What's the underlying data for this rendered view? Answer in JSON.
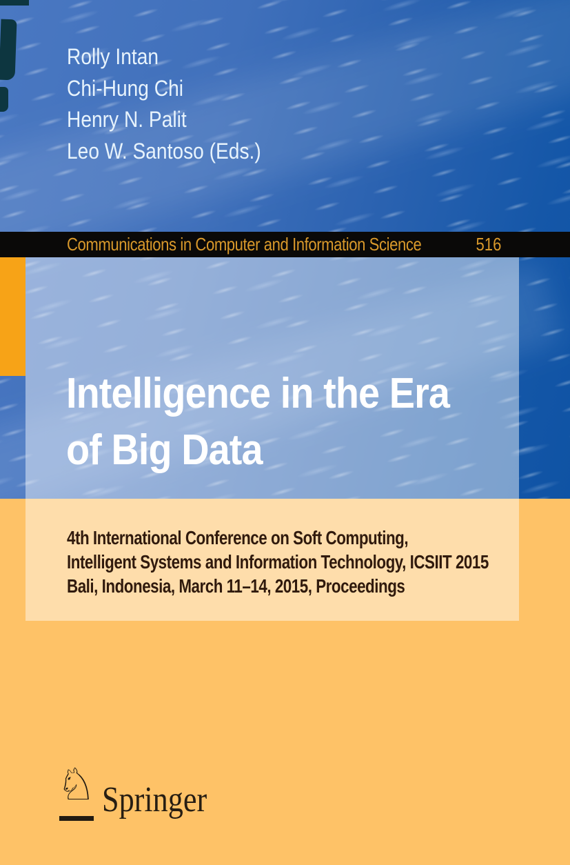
{
  "series_band": {
    "title": "Communications in Computer and Information Science",
    "volume": "516"
  },
  "authors": [
    "Rolly Intan",
    "Chi-Hung Chi",
    "Henry N. Palit",
    "Leo W. Santoso (Eds.)"
  ],
  "title": {
    "line1": "Intelligence in the Era",
    "line2": "of Big Data"
  },
  "subtitle": {
    "line1": "4th International Conference on Soft Computing,",
    "line2": "Intelligent Systems and Information Technology, ICSIIT 2015",
    "line3": "Bali, Indonesia, March 11–14, 2015, Proceedings"
  },
  "publisher": {
    "name": "Springer",
    "horse_glyph": "♘"
  },
  "colors": {
    "band_background": "#0a0908",
    "band_text": "#d9992b",
    "accent_bar": "#f7a317",
    "blue_background": "#3a68b4",
    "bottom_background": "#fec267",
    "panel_overlay": "rgba(255,255,255,0.45)",
    "title_text": "#ffffff",
    "subtitle_text": "#301a0d",
    "author_text": "#e7f3fc",
    "logo_text": "#271e13"
  }
}
